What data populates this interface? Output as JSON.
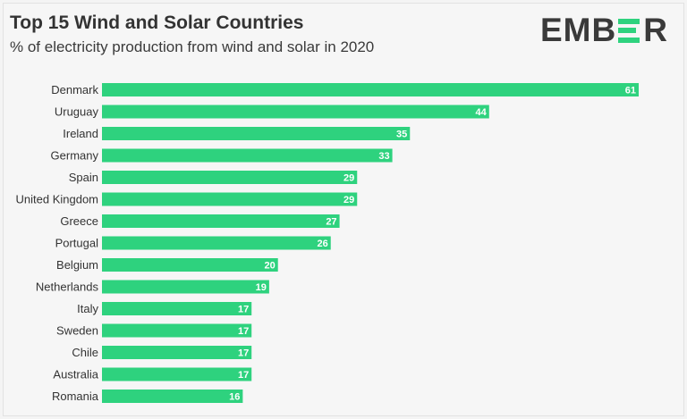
{
  "header": {
    "title": "Top 15 Wind and Solar Countries",
    "subtitle": "% of electricity production from wind and solar in 2020",
    "logo_text_left": "EMB",
    "logo_text_right": "R"
  },
  "colors": {
    "bar": "#2ed27e",
    "text": "#333333",
    "value_label": "#ffffff"
  },
  "chart_data": {
    "type": "bar",
    "orientation": "horizontal",
    "title": "Top 15 Wind and Solar Countries",
    "subtitle": "% of electricity production from wind and solar in 2020",
    "categories": [
      "Denmark",
      "Uruguay",
      "Ireland",
      "Germany",
      "Spain",
      "United Kingdom",
      "Greece",
      "Portugal",
      "Belgium",
      "Netherlands",
      "Italy",
      "Sweden",
      "Chile",
      "Australia",
      "Romania"
    ],
    "values": [
      61,
      44,
      35,
      33,
      29,
      29,
      27,
      26,
      20,
      19,
      17,
      17,
      17,
      17,
      16
    ],
    "xlim": [
      0,
      61
    ],
    "grid": false,
    "legend": "none"
  }
}
